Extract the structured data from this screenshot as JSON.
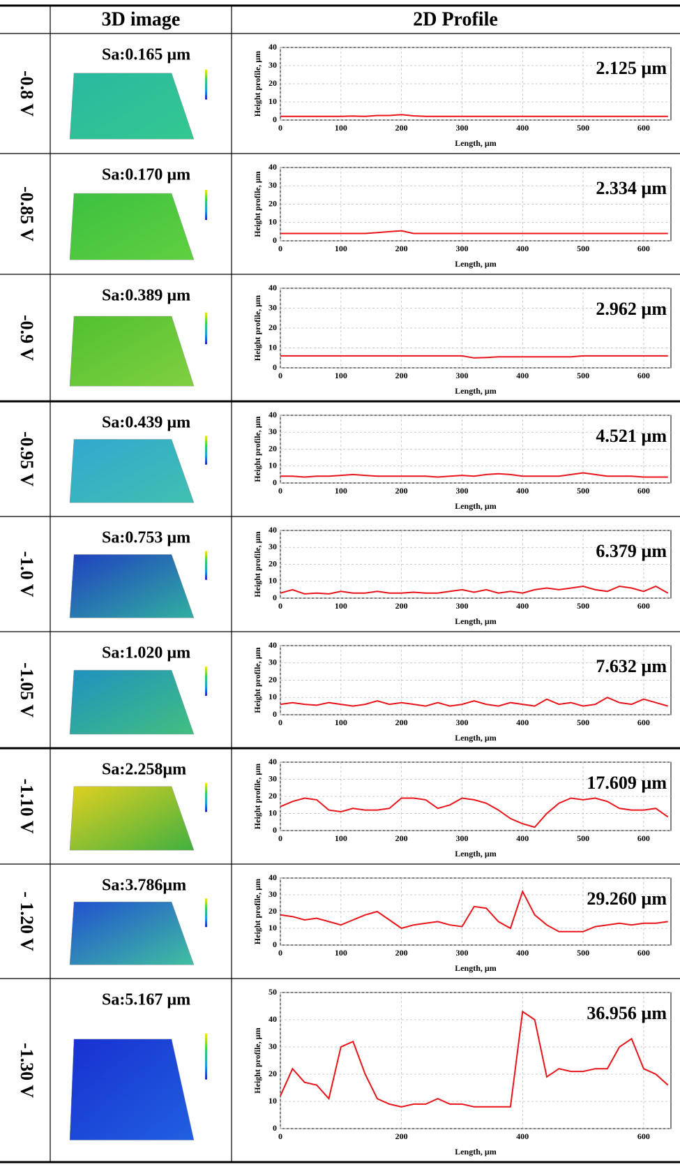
{
  "table": {
    "headers": [
      "3D image",
      "2D Profile"
    ],
    "rows": [
      {
        "label": "-0.8 V",
        "sa": "Sa:0.165 µm"
      },
      {
        "label": "-0.85 V",
        "sa": "Sa:0.170 µm"
      },
      {
        "label": "-0.9 V",
        "sa": "Sa:0.389 µm"
      },
      {
        "label": "-0.95 V",
        "sa": "Sa:0.439 µm"
      },
      {
        "label": "-1.0 V",
        "sa": "Sa:0.753 µm"
      },
      {
        "label": "-1.05 V",
        "sa": "Sa:1.020 µm"
      },
      {
        "label": "-1.10 V",
        "sa": "Sa:2.258µm"
      },
      {
        "label": "- 1.20 V",
        "sa": "Sa:3.786µm"
      },
      {
        "label": "-1.30 V",
        "sa": "Sa:5.167 µm"
      }
    ]
  },
  "chart_data": [
    {
      "type": "line",
      "annotation": "2.125 µm",
      "xlabel": "Length, µm",
      "ylabel": "Height profile, µm",
      "color": "#e8141a",
      "grid": true,
      "xlim": [
        0,
        645
      ],
      "ylim": [
        0,
        40
      ],
      "xticks": [
        0,
        100,
        200,
        300,
        400,
        500,
        600
      ],
      "yticks": [
        0,
        10,
        20,
        30,
        40
      ],
      "x": [
        0,
        20,
        40,
        60,
        80,
        100,
        120,
        140,
        160,
        180,
        200,
        220,
        240,
        260,
        280,
        300,
        320,
        340,
        360,
        380,
        400,
        420,
        440,
        460,
        480,
        500,
        520,
        540,
        560,
        580,
        600,
        620,
        640
      ],
      "values": [
        2,
        2,
        2,
        2,
        2,
        2,
        2.2,
        2,
        2.5,
        2.5,
        3,
        2.3,
        2,
        2,
        2,
        2,
        2,
        2,
        2,
        2,
        2,
        2,
        2,
        2,
        2,
        2,
        2,
        2,
        2,
        2,
        2,
        2,
        2
      ]
    },
    {
      "type": "line",
      "annotation": "2.334 µm",
      "xlabel": "Length, µm",
      "ylabel": "Height profile, µm",
      "color": "#e8141a",
      "grid": true,
      "xlim": [
        0,
        645
      ],
      "ylim": [
        0,
        40
      ],
      "xticks": [
        0,
        100,
        200,
        300,
        400,
        500,
        600
      ],
      "yticks": [
        0,
        10,
        20,
        30,
        40
      ],
      "x": [
        0,
        20,
        40,
        60,
        80,
        100,
        120,
        140,
        160,
        180,
        200,
        220,
        240,
        260,
        280,
        300,
        320,
        340,
        360,
        380,
        400,
        420,
        440,
        460,
        480,
        500,
        520,
        540,
        560,
        580,
        600,
        620,
        640
      ],
      "values": [
        4,
        4,
        4,
        4,
        4,
        4,
        4,
        4,
        4.5,
        5,
        5.5,
        4,
        4,
        4,
        4,
        4,
        4,
        4,
        4,
        4,
        4,
        4,
        4,
        4,
        4,
        4,
        4,
        4,
        4,
        4,
        4,
        4,
        4
      ]
    },
    {
      "type": "line",
      "annotation": "2.962 µm",
      "xlabel": "Length, µm",
      "ylabel": "Height profile, µm",
      "color": "#e8141a",
      "grid": true,
      "xlim": [
        0,
        645
      ],
      "ylim": [
        0,
        40
      ],
      "xticks": [
        0,
        100,
        200,
        300,
        400,
        500,
        600
      ],
      "yticks": [
        0,
        10,
        20,
        30,
        40
      ],
      "x": [
        0,
        20,
        40,
        60,
        80,
        100,
        120,
        140,
        160,
        180,
        200,
        220,
        240,
        260,
        280,
        300,
        320,
        340,
        360,
        380,
        400,
        420,
        440,
        460,
        480,
        500,
        520,
        540,
        560,
        580,
        600,
        620,
        640
      ],
      "values": [
        6,
        6,
        6,
        6,
        6,
        6,
        6,
        6,
        6,
        6,
        6,
        6,
        6,
        6,
        6,
        6,
        5,
        5.2,
        5.5,
        5.5,
        5.5,
        5.5,
        5.5,
        5.5,
        5.5,
        6,
        6,
        6,
        6,
        6,
        6,
        6,
        6
      ]
    },
    {
      "type": "line",
      "annotation": "4.521 µm",
      "xlabel": "Length, µm",
      "ylabel": "Height profile, µm",
      "color": "#e8141a",
      "grid": true,
      "xlim": [
        0,
        645
      ],
      "ylim": [
        0,
        40
      ],
      "xticks": [
        0,
        100,
        200,
        300,
        400,
        500,
        600
      ],
      "yticks": [
        0,
        10,
        20,
        30,
        40
      ],
      "x": [
        0,
        20,
        40,
        60,
        80,
        100,
        120,
        140,
        160,
        180,
        200,
        220,
        240,
        260,
        280,
        300,
        320,
        340,
        360,
        380,
        400,
        420,
        440,
        460,
        480,
        500,
        520,
        540,
        560,
        580,
        600,
        620,
        640
      ],
      "values": [
        4,
        4,
        3.5,
        4,
        4,
        4.5,
        5,
        4.5,
        4,
        4,
        4,
        4,
        4,
        3.5,
        4,
        4.5,
        4,
        5,
        5.5,
        5,
        4,
        4,
        4,
        4,
        5,
        6,
        5,
        4,
        4,
        4,
        3.5,
        3.5,
        3.5
      ]
    },
    {
      "type": "line",
      "annotation": "6.379 µm",
      "xlabel": "Length, µm",
      "ylabel": "Height profile, µm",
      "color": "#e8141a",
      "grid": true,
      "xlim": [
        0,
        645
      ],
      "ylim": [
        0,
        40
      ],
      "xticks": [
        0,
        100,
        200,
        300,
        400,
        500,
        600
      ],
      "yticks": [
        0,
        10,
        20,
        30,
        40
      ],
      "x": [
        0,
        20,
        40,
        60,
        80,
        100,
        120,
        140,
        160,
        180,
        200,
        220,
        240,
        260,
        280,
        300,
        320,
        340,
        360,
        380,
        400,
        420,
        440,
        460,
        480,
        500,
        520,
        540,
        560,
        580,
        600,
        620,
        640
      ],
      "values": [
        3,
        5,
        2.5,
        3,
        2.5,
        4,
        3,
        3,
        4,
        3,
        3,
        3.5,
        3,
        3,
        4,
        5,
        3.5,
        5,
        3,
        4,
        3,
        5,
        6,
        5,
        6,
        7,
        5,
        4,
        7,
        6,
        4,
        7,
        3
      ]
    },
    {
      "type": "line",
      "annotation": "7.632 µm",
      "xlabel": "Length, µm",
      "ylabel": "Height profile, µm",
      "color": "#e8141a",
      "grid": true,
      "xlim": [
        0,
        645
      ],
      "ylim": [
        0,
        40
      ],
      "xticks": [
        0,
        100,
        200,
        300,
        400,
        500,
        600
      ],
      "yticks": [
        0,
        10,
        20,
        30,
        40
      ],
      "x": [
        0,
        20,
        40,
        60,
        80,
        100,
        120,
        140,
        160,
        180,
        200,
        220,
        240,
        260,
        280,
        300,
        320,
        340,
        360,
        380,
        400,
        420,
        440,
        460,
        480,
        500,
        520,
        540,
        560,
        580,
        600,
        620,
        640
      ],
      "values": [
        6,
        7,
        6,
        5.5,
        7,
        6,
        5,
        6,
        8,
        6,
        7,
        6,
        5,
        7,
        5,
        6,
        8,
        6,
        5,
        7,
        6,
        5,
        9,
        6,
        7,
        5,
        6,
        10,
        7,
        6,
        9,
        7,
        5
      ]
    },
    {
      "type": "line",
      "annotation": "17.609 µm",
      "xlabel": "Length, µm",
      "ylabel": "Height profile, µm",
      "color": "#e8141a",
      "grid": true,
      "xlim": [
        0,
        645
      ],
      "ylim": [
        0,
        40
      ],
      "xticks": [
        0,
        100,
        200,
        300,
        400,
        500,
        600
      ],
      "yticks": [
        0,
        10,
        20,
        30,
        40
      ],
      "x": [
        0,
        20,
        40,
        60,
        80,
        100,
        120,
        140,
        160,
        180,
        200,
        220,
        240,
        260,
        280,
        300,
        320,
        340,
        360,
        380,
        400,
        420,
        440,
        460,
        480,
        500,
        520,
        540,
        560,
        580,
        600,
        620,
        640
      ],
      "values": [
        14,
        17,
        19,
        18,
        12,
        11,
        13,
        12,
        12,
        13,
        19,
        19,
        18,
        13,
        15,
        19,
        18,
        16,
        12,
        7,
        4,
        2,
        10,
        16,
        19,
        18,
        19,
        17,
        13,
        12,
        12,
        13,
        8
      ]
    },
    {
      "type": "line",
      "annotation": "29.260 µm",
      "xlabel": "Length, µm",
      "ylabel": "Height profile, µm",
      "color": "#e8141a",
      "grid": true,
      "xlim": [
        0,
        645
      ],
      "ylim": [
        0,
        40
      ],
      "xticks": [
        0,
        100,
        200,
        300,
        400,
        500,
        600
      ],
      "yticks": [
        0,
        10,
        20,
        30,
        40
      ],
      "x": [
        0,
        20,
        40,
        60,
        80,
        100,
        120,
        140,
        160,
        180,
        200,
        220,
        240,
        260,
        280,
        300,
        320,
        340,
        360,
        380,
        400,
        420,
        440,
        460,
        480,
        500,
        520,
        540,
        560,
        580,
        600,
        620,
        640
      ],
      "values": [
        18,
        17,
        15,
        16,
        14,
        12,
        15,
        18,
        20,
        15,
        10,
        12,
        13,
        14,
        12,
        11,
        23,
        22,
        14,
        10,
        32,
        18,
        12,
        8,
        8,
        8,
        11,
        12,
        13,
        12,
        13,
        13,
        14
      ]
    },
    {
      "type": "line",
      "annotation": "36.956 µm",
      "xlabel": "Length, µm",
      "ylabel": "Height profile, µm",
      "color": "#e8141a",
      "grid": true,
      "xlim": [
        0,
        645
      ],
      "ylim": [
        0,
        50
      ],
      "xticks": [
        0,
        200,
        400,
        600
      ],
      "yticks": [
        0,
        10,
        20,
        30,
        40,
        50
      ],
      "x": [
        0,
        20,
        40,
        60,
        80,
        100,
        120,
        140,
        160,
        180,
        200,
        220,
        240,
        260,
        280,
        300,
        320,
        340,
        360,
        380,
        400,
        420,
        440,
        460,
        480,
        500,
        520,
        540,
        560,
        580,
        600,
        620,
        640
      ],
      "values": [
        12,
        22,
        17,
        16,
        11,
        30,
        32,
        20,
        11,
        9,
        8,
        9,
        9,
        11,
        9,
        9,
        8,
        8,
        8,
        8,
        43,
        40,
        19,
        22,
        21,
        21,
        22,
        22,
        30,
        33,
        22,
        20,
        16
      ]
    }
  ]
}
